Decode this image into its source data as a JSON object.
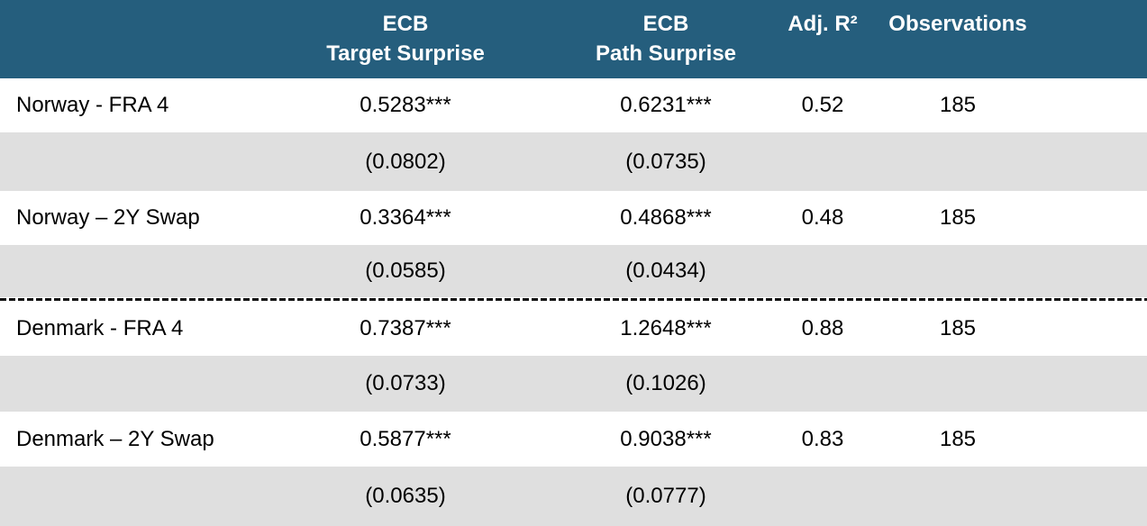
{
  "colors": {
    "header_bg": "#255E7D",
    "header_text": "#FFFFFF",
    "alt_row_bg": "#DFDFDF",
    "body_text": "#000000",
    "divider": "#111111"
  },
  "header": {
    "target_line1": "ECB",
    "target_line2": "Target Surprise",
    "path_line1": "ECB",
    "path_line2": "Path Surprise",
    "adj_r2": "Adj. R²",
    "observations": "Observations"
  },
  "chart_data": {
    "type": "table",
    "columns": [
      "",
      "ECB Target Surprise",
      "ECB Path Surprise",
      "Adj. R²",
      "Observations"
    ],
    "rows": [
      [
        "Norway - FRA 4",
        "0.5283***",
        "0.6231***",
        "0.52",
        "185"
      ],
      [
        "",
        "(0.0802)",
        "(0.0735)",
        "",
        ""
      ],
      [
        "Norway – 2Y Swap",
        "0.3364***",
        "0.4868***",
        "0.48",
        "185"
      ],
      [
        "",
        "(0.0585)",
        "(0.0434)",
        "",
        ""
      ],
      [
        "Denmark - FRA 4",
        "0.7387***",
        "1.2648***",
        "0.88",
        "185"
      ],
      [
        "",
        "(0.0733)",
        "(0.1026)",
        "",
        ""
      ],
      [
        "Denmark – 2Y Swap",
        "0.5877***",
        "0.9038***",
        "0.83",
        "185"
      ],
      [
        "",
        "(0.0635)",
        "(0.0777)",
        "",
        ""
      ]
    ]
  }
}
